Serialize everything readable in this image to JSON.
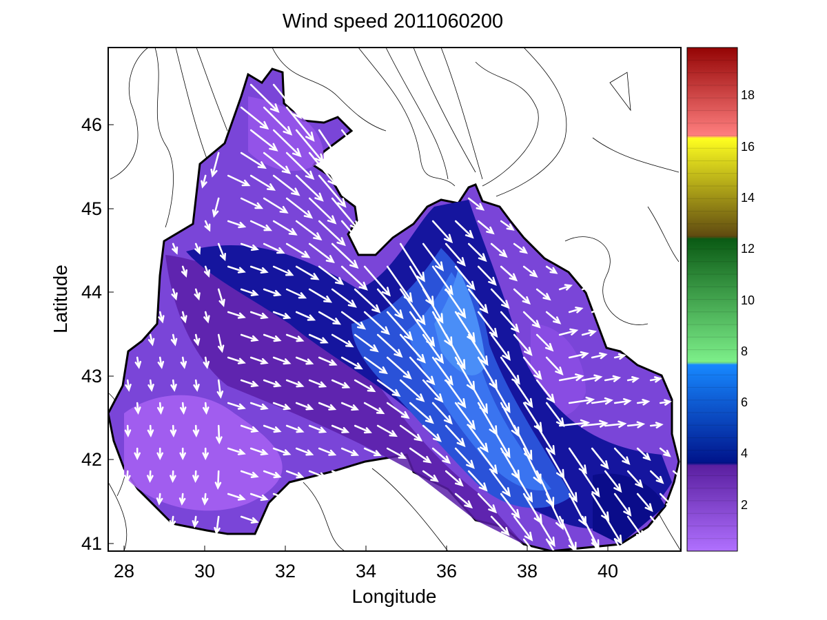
{
  "figure": {
    "title": "Wind speed 2011060200",
    "xlabel": "Longitude",
    "ylabel": "Latitude"
  },
  "map": {
    "x_range": [
      27.5,
      41.7
    ],
    "y_range": [
      40.9,
      46.9
    ],
    "x_ticks": [
      "28",
      "30",
      "32",
      "34",
      "36",
      "38",
      "40"
    ],
    "y_ticks": [
      "41",
      "42",
      "43",
      "44",
      "45",
      "46"
    ],
    "land_color": "#ffffff",
    "coast_color": "#000000",
    "arrow_color": "#ffffff"
  },
  "colorbar": {
    "range": [
      0,
      20
    ],
    "ticks": [
      "2",
      "4",
      "6",
      "8",
      "10",
      "12",
      "14",
      "16",
      "18"
    ],
    "bands": [
      {
        "from": 0,
        "to": 3.5,
        "color": "#7a3fd6"
      },
      {
        "from": 3.5,
        "to": 7.5,
        "color": "#1f4fd0"
      },
      {
        "from": 7.5,
        "to": 12.5,
        "color": "#3fb548"
      },
      {
        "from": 12.5,
        "to": 16.5,
        "color": "#a89a10"
      },
      {
        "from": 16.5,
        "to": 20,
        "color": "#c0303a"
      }
    ]
  },
  "chart_data": {
    "type": "heatmap",
    "title": "Wind speed 2011060200",
    "xlabel": "Longitude",
    "ylabel": "Latitude",
    "xlim": [
      27.5,
      41.7
    ],
    "ylim": [
      40.9,
      46.9
    ],
    "value_range": [
      0,
      20
    ],
    "colorbar_ticks": [
      2,
      4,
      6,
      8,
      10,
      12,
      14,
      16,
      18
    ],
    "grid": false,
    "regions": [
      {
        "level": 1.0,
        "center": [
          29.5,
          42.1
        ]
      },
      {
        "level": 2.0,
        "center": [
          30.0,
          43.0
        ]
      },
      {
        "level": 2.5,
        "center": [
          39.5,
          43.0
        ]
      },
      {
        "level": 3.0,
        "center": [
          32.5,
          44.2
        ]
      },
      {
        "level": 4.0,
        "center": [
          34.5,
          43.7
        ]
      },
      {
        "level": 5.0,
        "center": [
          35.5,
          43.0
        ]
      },
      {
        "level": 6.0,
        "center": [
          36.5,
          42.3
        ]
      }
    ]
  }
}
